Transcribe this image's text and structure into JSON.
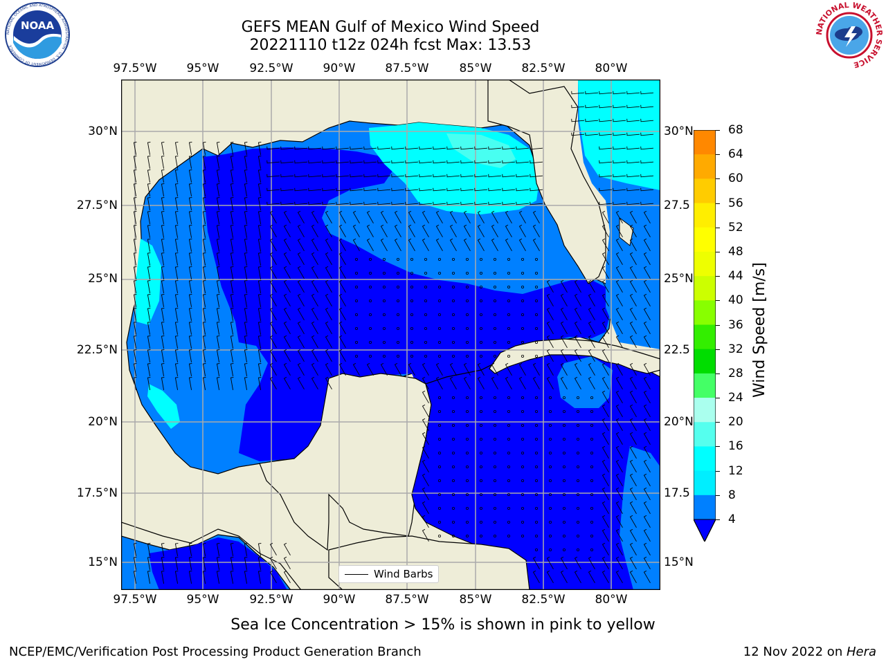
{
  "title": {
    "line1": "GEFS MEAN Gulf of Mexico Wind Speed",
    "line2": "20221110 t12z 024h fcst   Max: 13.53"
  },
  "logos": {
    "left": {
      "name": "noaa-logo",
      "text": "NOAA",
      "ring_text": "NATIONAL OCEANIC AND ATMOSPHERIC ADMINISTRATION · U.S. DEPARTMENT OF COMMERCE"
    },
    "right": {
      "name": "nws-logo",
      "ring_text": "NATIONAL WEATHER SERVICE"
    }
  },
  "axes": {
    "lon_ticks": [
      "97.5°W",
      "95°W",
      "92.5°W",
      "90°W",
      "87.5°W",
      "85°W",
      "82.5°W",
      "80°W"
    ],
    "lat_ticks": [
      "30°N",
      "27.5°N",
      "25°N",
      "22.5°N",
      "20°N",
      "17.5°N",
      "15°N"
    ],
    "lat_ticks_right": [
      "30°N",
      "27.5",
      "25°N",
      "22.5",
      "20°N",
      "17.5",
      "15°N"
    ]
  },
  "legend": {
    "label": "Wind Barbs"
  },
  "colorbar": {
    "label": "Wind Speed [m/s]",
    "ticks": [
      "68",
      "64",
      "60",
      "56",
      "52",
      "48",
      "44",
      "40",
      "36",
      "32",
      "28",
      "24",
      "20",
      "16",
      "12",
      "8",
      "4"
    ],
    "colors": [
      "#ff0000",
      "#ff3300",
      "#ff6600",
      "#ff8800",
      "#ffaa00",
      "#ffcc00",
      "#ffee00",
      "#ffff00",
      "#eeff00",
      "#ccff00",
      "#88ff00",
      "#33ee00",
      "#00dd00",
      "#44ff66",
      "#aaffee",
      "#55ffee",
      "#00ffff",
      "#00eeff",
      "#0080ff"
    ],
    "extend_color": "#0000ff"
  },
  "colors": {
    "land": "#eeedd8",
    "ocean_0_4": "#0000ff",
    "ocean_4_8": "#0080ff",
    "ocean_8_12": "#00ffff",
    "ocean_12_16": "#55ffee",
    "grid": "#aaaaaa"
  },
  "note": "Sea Ice Concentration > 15% is shown in pink to yellow",
  "footer": {
    "left": "NCEP/EMC/Verification Post Processing Product Generation Branch",
    "right_date": "12 Nov 2022 on ",
    "right_host": "Hera"
  }
}
